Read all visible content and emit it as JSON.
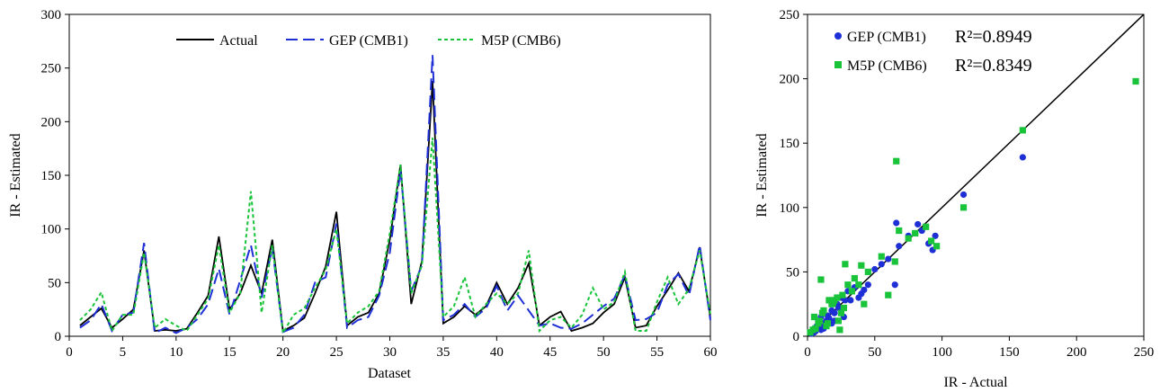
{
  "chart_data": [
    {
      "type": "line",
      "title": "",
      "xlabel": "Dataset",
      "ylabel": "IR - Estimated",
      "xlim": [
        0,
        60
      ],
      "ylim": [
        0,
        300
      ],
      "xticks": [
        "0",
        "5",
        "10",
        "15",
        "20",
        "25",
        "30",
        "35",
        "40",
        "45",
        "50",
        "55",
        "60"
      ],
      "yticks": [
        "0",
        "50",
        "100",
        "150",
        "200",
        "250",
        "300"
      ],
      "legend_position": "top",
      "x": [
        1,
        2,
        3,
        4,
        5,
        6,
        7,
        8,
        9,
        10,
        11,
        12,
        13,
        14,
        15,
        16,
        17,
        18,
        19,
        20,
        21,
        22,
        23,
        24,
        25,
        26,
        27,
        28,
        29,
        30,
        31,
        32,
        33,
        34,
        35,
        36,
        37,
        38,
        39,
        40,
        41,
        42,
        43,
        44,
        45,
        46,
        47,
        48,
        49,
        50,
        51,
        52,
        53,
        54,
        55,
        56,
        57,
        58,
        59,
        60
      ],
      "series": [
        {
          "name": "Actual",
          "color": "#000000",
          "style": "solid",
          "values": [
            10,
            18,
            26,
            8,
            16,
            25,
            80,
            5,
            6,
            5,
            7,
            22,
            38,
            93,
            25,
            40,
            66,
            40,
            90,
            5,
            10,
            17,
            40,
            65,
            116,
            10,
            18,
            22,
            40,
            90,
            160,
            30,
            70,
            238,
            12,
            18,
            28,
            20,
            28,
            50,
            30,
            45,
            68,
            10,
            18,
            23,
            5,
            8,
            12,
            22,
            30,
            55,
            8,
            10,
            28,
            43,
            59,
            42,
            83,
            17
          ]
        },
        {
          "name": "GEP (CMB1)",
          "color": "#1f2fd6",
          "style": "dash",
          "values": [
            8,
            15,
            30,
            5,
            20,
            22,
            87,
            3,
            8,
            3,
            8,
            16,
            30,
            63,
            20,
            52,
            85,
            36,
            82,
            4,
            8,
            20,
            50,
            55,
            105,
            8,
            15,
            18,
            38,
            78,
            155,
            42,
            66,
            262,
            15,
            20,
            30,
            18,
            26,
            47,
            24,
            38,
            24,
            10,
            12,
            8,
            7,
            12,
            20,
            28,
            35,
            57,
            15,
            16,
            22,
            48,
            58,
            38,
            85,
            15
          ]
        },
        {
          "name": "M5P (CMB6)",
          "color": "#19c43a",
          "style": "dot",
          "values": [
            15,
            25,
            41,
            5,
            20,
            20,
            78,
            8,
            16,
            10,
            5,
            20,
            35,
            85,
            22,
            40,
            135,
            22,
            85,
            3,
            20,
            26,
            45,
            62,
            100,
            12,
            22,
            28,
            42,
            96,
            160,
            40,
            66,
            185,
            18,
            28,
            55,
            18,
            30,
            40,
            30,
            40,
            80,
            5,
            15,
            18,
            8,
            20,
            45,
            25,
            32,
            60,
            5,
            5,
            32,
            55,
            30,
            44,
            80,
            20
          ]
        }
      ]
    },
    {
      "type": "scatter",
      "title": "",
      "xlabel": "IR - Actual",
      "ylabel": "IR - Estimated",
      "xlim": [
        0,
        250
      ],
      "ylim": [
        0,
        250
      ],
      "xticks": [
        "0",
        "50",
        "100",
        "150",
        "200",
        "250"
      ],
      "yticks": [
        "0",
        "50",
        "100",
        "150",
        "200",
        "250"
      ],
      "legend_position": "top-left",
      "reference_line": "y = x",
      "series": [
        {
          "name": "GEP (CMB1)",
          "r2_label": "R²=0.8949",
          "color": "#1f2fd6",
          "marker": "circle",
          "x": [
            5,
            8,
            10,
            12,
            15,
            18,
            20,
            22,
            25,
            28,
            30,
            35,
            40,
            45,
            50,
            55,
            60,
            65,
            66,
            68,
            75,
            80,
            82,
            85,
            90,
            93,
            95,
            116,
            160,
            5,
            7,
            10,
            14,
            18,
            23,
            27,
            32,
            38,
            42,
            3,
            6,
            9,
            12,
            16,
            20,
            25
          ],
          "y": [
            6,
            12,
            15,
            10,
            16,
            20,
            18,
            25,
            30,
            28,
            35,
            38,
            33,
            40,
            52,
            56,
            60,
            40,
            88,
            70,
            78,
            80,
            87,
            82,
            72,
            67,
            78,
            110,
            139,
            3,
            8,
            5,
            12,
            10,
            22,
            15,
            28,
            30,
            36,
            2,
            4,
            8,
            6,
            14,
            12,
            20
          ]
        },
        {
          "name": "M5P (CMB6)",
          "r2_label": "R²=0.8349",
          "color": "#19c43a",
          "marker": "square",
          "x": [
            4,
            8,
            10,
            12,
            16,
            18,
            22,
            25,
            28,
            30,
            35,
            40,
            42,
            45,
            55,
            60,
            65,
            66,
            68,
            75,
            80,
            88,
            92,
            96,
            116,
            160,
            244,
            5,
            9,
            14,
            20,
            24,
            27,
            33,
            38,
            2,
            6,
            11,
            15,
            19,
            23,
            26
          ],
          "y": [
            5,
            10,
            44,
            20,
            28,
            25,
            30,
            18,
            56,
            40,
            45,
            55,
            25,
            50,
            62,
            32,
            58,
            136,
            82,
            76,
            80,
            85,
            74,
            70,
            100,
            160,
            198,
            15,
            12,
            8,
            28,
            5,
            22,
            35,
            40,
            3,
            6,
            18,
            10,
            26,
            12,
            32
          ]
        }
      ]
    }
  ]
}
